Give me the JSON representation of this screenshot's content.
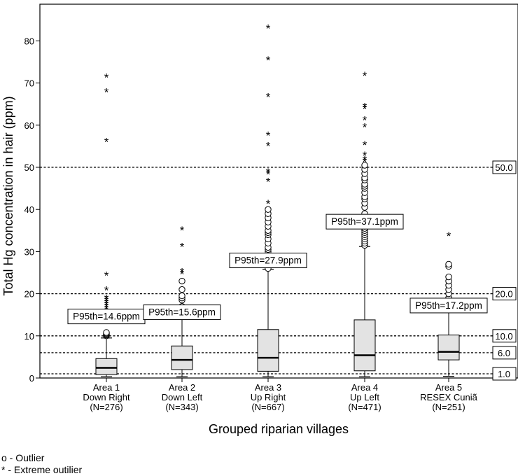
{
  "chart_data": {
    "type": "boxplot",
    "xlabel": "Grouped riparian villages",
    "ylabel": "Total Hg concentration in hair (ppm)",
    "ylim": [
      0,
      88
    ],
    "yticks": [
      0,
      10,
      20,
      30,
      40,
      50,
      60,
      70,
      80
    ],
    "grid": false,
    "categories": [
      {
        "lines": [
          "Area 1",
          "Down Right",
          "(N=276)"
        ]
      },
      {
        "lines": [
          "Area 2",
          "Down Left",
          "(N=343)"
        ]
      },
      {
        "lines": [
          "Area 3",
          "Up Right",
          "(N=667)"
        ]
      },
      {
        "lines": [
          "Area 4",
          "Up Left",
          "(N=471)"
        ]
      },
      {
        "lines": [
          "Area 5",
          "RESEX Cuniã",
          "(N=251)"
        ]
      }
    ],
    "boxes": [
      {
        "whisker_low": 0.3,
        "q1": 0.8,
        "median": 2.4,
        "q3": 4.6,
        "whisker_high": 9.5,
        "p95_label": "P95th=14.6ppm",
        "p95_value": 14.6,
        "outliers": [
          10.0,
          10.2,
          10.4,
          10.6,
          10.8
        ],
        "extremes": [
          15.0,
          15.5,
          16.0,
          16.5,
          17.0,
          17.5,
          18.0,
          18.5,
          19.0,
          21.0,
          24.5,
          56.2,
          68.0,
          71.5
        ]
      },
      {
        "whisker_low": 0.3,
        "q1": 2.0,
        "median": 4.3,
        "q3": 7.6,
        "whisker_high": 15.0,
        "p95_label": "P95th=15.6ppm",
        "p95_value": 15.6,
        "outliers": [
          15.5,
          16.0,
          16.6,
          17.0,
          18.5,
          19.0,
          19.5,
          21.0,
          23.0
        ],
        "extremes": [
          24.8,
          25.3,
          31.3,
          35.2
        ]
      },
      {
        "whisker_low": 0.3,
        "q1": 1.6,
        "median": 4.8,
        "q3": 11.5,
        "whisker_high": 25.8,
        "p95_label": "P95th=27.9ppm",
        "p95_value": 27.9,
        "outliers": [
          26.0,
          27.0,
          28.0,
          29.0,
          29.5,
          30.0,
          30.5,
          31.0,
          32.0,
          33.0,
          34.0,
          34.5,
          35.0,
          36.0,
          37.0,
          38.0,
          39.0,
          40.0
        ],
        "extremes": [
          41.5,
          46.8,
          48.5,
          49.0,
          55.2,
          57.7,
          66.9,
          75.6,
          83.1
        ]
      },
      {
        "whisker_low": 0.3,
        "q1": 1.7,
        "median": 5.4,
        "q3": 13.8,
        "whisker_high": 31.2,
        "p95_label": "P95th=37.1ppm",
        "p95_value": 37.1,
        "outliers": [
          31.5,
          32.0,
          32.5,
          33.0,
          33.5,
          34.0,
          34.5,
          35.0,
          35.5,
          36.0,
          36.5,
          37.0,
          37.5,
          38.0,
          39.0,
          40.5,
          41.5,
          42.5,
          43.0,
          44.0,
          45.0,
          45.5,
          46.0,
          47.0,
          47.5,
          48.5,
          49.5,
          50.5
        ],
        "extremes": [
          51.5,
          52.0,
          53.0,
          55.5,
          59.7,
          61.4,
          64.0,
          64.5,
          71.9
        ]
      },
      {
        "whisker_low": 0.4,
        "q1": 4.3,
        "median": 6.2,
        "q3": 10.2,
        "whisker_high": 17.8,
        "p95_label": "P95th=17.2ppm",
        "p95_value": 17.2,
        "outliers": [
          18.3,
          19.0,
          20.0,
          21.0,
          22.0,
          23.0,
          24.0,
          26.5,
          27.0
        ],
        "extremes": [
          33.9
        ]
      }
    ],
    "reference_lines": [
      {
        "value": 50.0,
        "label": "50.0"
      },
      {
        "value": 20.0,
        "label": "20.0"
      },
      {
        "value": 10.0,
        "label": "10.0"
      },
      {
        "value": 6.0,
        "label": "6.0"
      },
      {
        "value": 1.0,
        "label": "1.0"
      }
    ]
  },
  "legend": {
    "outlier": "o - Outlier",
    "extreme": "* - Extreme outilier"
  }
}
